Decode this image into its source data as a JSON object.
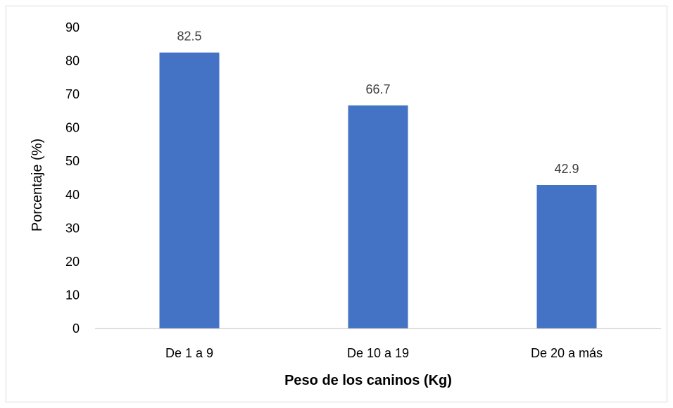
{
  "chart_data": {
    "type": "bar",
    "title": "",
    "xlabel": "Peso de los caninos (Kg)",
    "ylabel": "Porcentaje (%)",
    "categories": [
      "De 1 a 9",
      "De 10 a 19",
      "De 20 a más"
    ],
    "values": [
      82.5,
      66.7,
      42.9
    ],
    "data_labels": [
      "82.5",
      "66.7",
      "42.9"
    ],
    "ylim": [
      0,
      90
    ],
    "yticks": [
      0,
      10,
      20,
      30,
      40,
      50,
      60,
      70,
      80,
      90
    ],
    "grid": false,
    "legend": "none",
    "colors": {
      "bar": "#4472C4",
      "axis": "#bfbfbf"
    }
  }
}
